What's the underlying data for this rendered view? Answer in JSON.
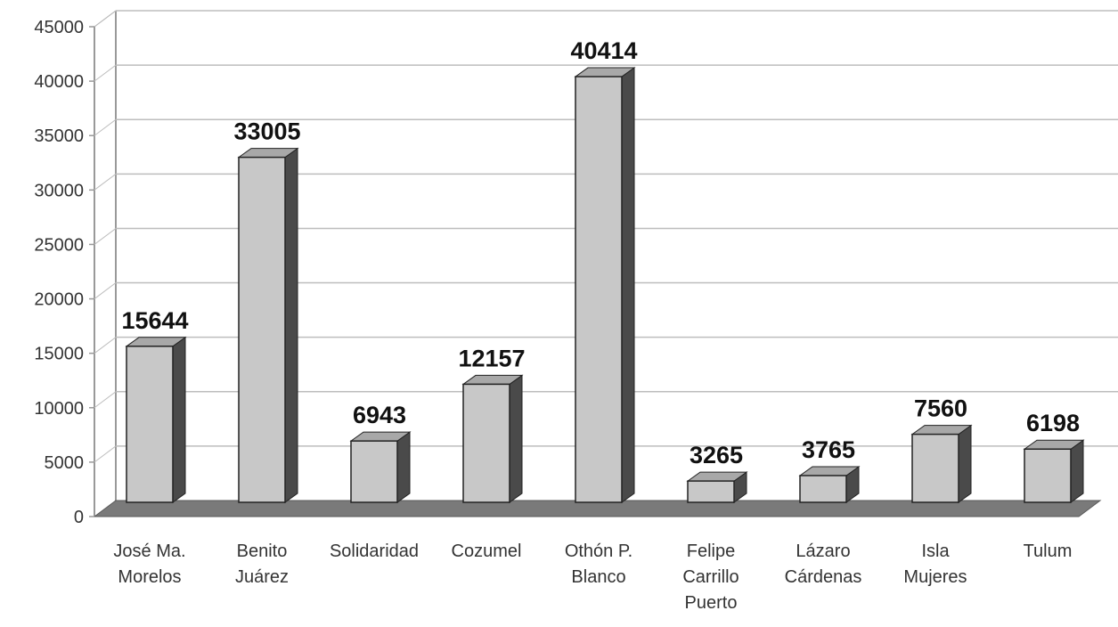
{
  "chart_data": {
    "type": "bar",
    "title": "",
    "xlabel": "",
    "ylabel": "",
    "ylim": [
      0,
      45000
    ],
    "yticks": [
      0,
      5000,
      10000,
      15000,
      20000,
      25000,
      30000,
      35000,
      40000,
      45000
    ],
    "grid": true,
    "legend": "none",
    "style": "3d-column",
    "categories": [
      [
        "José Ma.",
        "Morelos"
      ],
      [
        "Benito",
        "Juárez"
      ],
      [
        "Solidaridad"
      ],
      [
        "Cozumel"
      ],
      [
        "Othón P.",
        "Blanco"
      ],
      [
        "Felipe",
        "Carrillo",
        "Puerto"
      ],
      [
        "Lázaro",
        "Cárdenas"
      ],
      [
        "Isla",
        "Mujeres"
      ],
      [
        "Tulum"
      ]
    ],
    "values": [
      15644,
      33005,
      6943,
      12157,
      40414,
      3265,
      3765,
      7560,
      6198
    ],
    "colors": {
      "bar_front": "#c8c8c8",
      "bar_top": "#a8a8a8",
      "bar_side": "#4a4a4a",
      "floor": "#7a7a7a",
      "grid": "#bdbdbd",
      "axis": "#999999"
    }
  }
}
